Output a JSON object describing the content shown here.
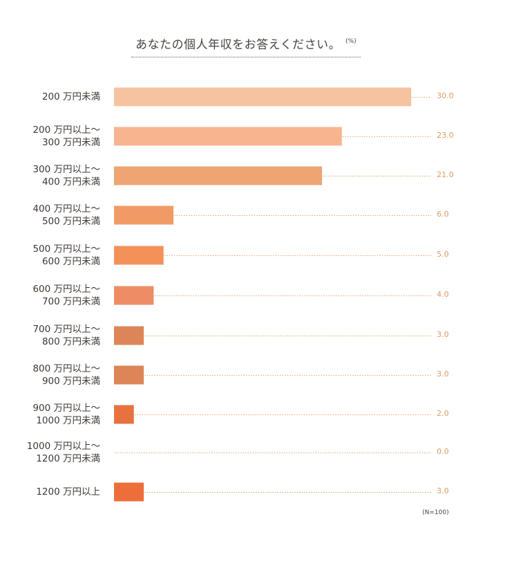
{
  "chart_data": {
    "type": "bar",
    "orientation": "horizontal",
    "title": "あなたの個人年収をお答えください。",
    "unit": "(%)",
    "categories": [
      [
        "200 万円未満"
      ],
      [
        "200 万円以上～",
        "300 万円未満"
      ],
      [
        "300 万円以上～",
        "400 万円未満"
      ],
      [
        "400 万円以上～",
        "500 万円未満"
      ],
      [
        "500 万円以上～",
        "600 万円未満"
      ],
      [
        "600 万円以上～",
        "700 万円未満"
      ],
      [
        "700 万円以上～",
        "800 万円未満"
      ],
      [
        "800 万円以上～",
        "900 万円未満"
      ],
      [
        "900 万円以上～",
        "1000 万円未満"
      ],
      [
        "1000 万円以上～",
        "1200 万円未満"
      ],
      [
        "1200 万円以上"
      ]
    ],
    "values": [
      30.0,
      23.0,
      21.0,
      6.0,
      5.0,
      4.0,
      3.0,
      3.0,
      2.0,
      0.0,
      3.0
    ],
    "value_labels": [
      "30.0",
      "23.0",
      "21.0",
      "6.0",
      "5.0",
      "4.0",
      "3.0",
      "3.0",
      "2.0",
      "0.0",
      "3.0"
    ],
    "colors": [
      "#f5c3a0",
      "#f7b48f",
      "#eea574",
      "#f29a66",
      "#f39158",
      "#ee8c66",
      "#dd8558",
      "#dd8558",
      "#e8723f",
      "#e8723f",
      "#ec6f3a"
    ],
    "xlim": [
      0,
      30
    ],
    "note": "(N=100)",
    "grid": false,
    "legend": "none"
  }
}
